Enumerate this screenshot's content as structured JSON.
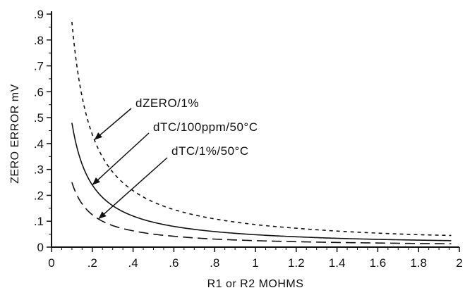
{
  "chart_data": {
    "type": "line",
    "xlabel": "R1 or R2 MOHMS",
    "ylabel": "ZERO ERROR mV",
    "xlim": [
      0,
      2
    ],
    "ylim": [
      0,
      0.9
    ],
    "x_ticks": [
      {
        "value": 0,
        "label": "0"
      },
      {
        "value": 0.2,
        "label": ".2"
      },
      {
        "value": 0.4,
        "label": ".4"
      },
      {
        "value": 0.6,
        "label": ".6"
      },
      {
        "value": 0.8,
        "label": ".8"
      },
      {
        "value": 1.0,
        "label": "1"
      },
      {
        "value": 1.2,
        "label": "1.2"
      },
      {
        "value": 1.4,
        "label": "1.4"
      },
      {
        "value": 1.6,
        "label": "1.6"
      },
      {
        "value": 1.8,
        "label": "1.8"
      },
      {
        "value": 2.0,
        "label": "2"
      }
    ],
    "y_ticks": [
      {
        "value": 0,
        "label": "0"
      },
      {
        "value": 0.1,
        "label": ".1"
      },
      {
        "value": 0.2,
        "label": ".2"
      },
      {
        "value": 0.3,
        "label": ".3"
      },
      {
        "value": 0.4,
        "label": ".4"
      },
      {
        "value": 0.5,
        "label": ".5"
      },
      {
        "value": 0.6,
        "label": ".6"
      },
      {
        "value": 0.7,
        "label": ".7"
      },
      {
        "value": 0.8,
        "label": ".8"
      },
      {
        "value": 0.9,
        "label": ".9"
      }
    ],
    "grid": false,
    "legend": "none",
    "series": [
      {
        "name": "dZERO/1%",
        "dash": "short-dash",
        "x": [
          0.1,
          0.15,
          0.2,
          0.25,
          0.3,
          0.4,
          0.5,
          0.6,
          0.8,
          1.0,
          1.2,
          1.4,
          1.6,
          1.8,
          1.96
        ],
        "values": [
          0.87,
          0.58,
          0.435,
          0.348,
          0.29,
          0.218,
          0.174,
          0.145,
          0.109,
          0.087,
          0.073,
          0.062,
          0.054,
          0.048,
          0.045
        ]
      },
      {
        "name": "dTC/100ppm/50°C",
        "dash": "solid",
        "x": [
          0.1,
          0.15,
          0.2,
          0.25,
          0.3,
          0.4,
          0.5,
          0.6,
          0.8,
          1.0,
          1.2,
          1.4,
          1.6,
          1.8,
          1.96
        ],
        "values": [
          0.48,
          0.32,
          0.24,
          0.192,
          0.16,
          0.12,
          0.096,
          0.08,
          0.06,
          0.048,
          0.04,
          0.034,
          0.03,
          0.027,
          0.025
        ]
      },
      {
        "name": "dTC/1%/50°C",
        "dash": "long-dash",
        "x": [
          0.1,
          0.15,
          0.2,
          0.25,
          0.3,
          0.4,
          0.5,
          0.6,
          0.8,
          1.0,
          1.2,
          1.4,
          1.6,
          1.8,
          1.96
        ],
        "values": [
          0.25,
          0.167,
          0.125,
          0.1,
          0.083,
          0.063,
          0.05,
          0.042,
          0.031,
          0.025,
          0.021,
          0.018,
          0.016,
          0.014,
          0.013
        ]
      }
    ],
    "annotations": [
      {
        "text": "dZERO/1%",
        "series": 0,
        "point_x": 0.21
      },
      {
        "text": "dTC/100ppm/50°C",
        "series": 1,
        "point_x": 0.2
      },
      {
        "text": "dTC/1%/50°C",
        "series": 2,
        "point_x": 0.23
      }
    ]
  }
}
